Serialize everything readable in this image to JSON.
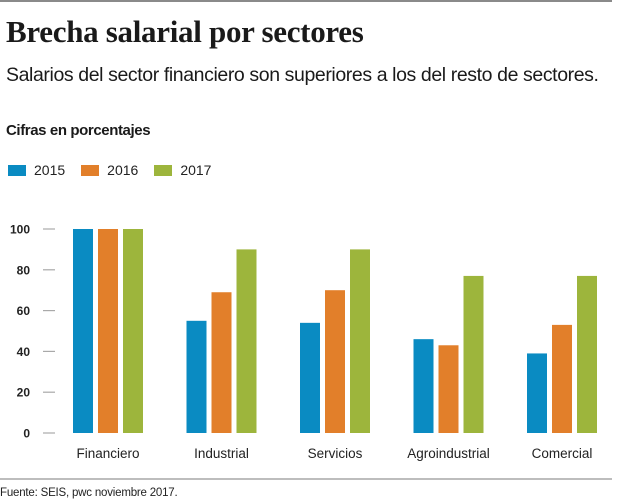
{
  "header": {
    "title": "Brecha salarial por sectores",
    "subtitle": "Salarios del sector financiero son superiores a los del resto de sectores.",
    "unit_label": "Cifras en porcentajes"
  },
  "footer": {
    "source": "Fuente: SEIS, pwc noviembre 2017."
  },
  "chart_data": {
    "type": "bar",
    "title": "Brecha salarial por sectores",
    "subtitle": "Salarios del sector financiero son superiores a los del resto de sectores.",
    "xlabel": "",
    "ylabel": "Cifras en porcentajes",
    "categories": [
      "Financiero",
      "Industrial",
      "Servicios",
      "Agroindustrial",
      "Comercial"
    ],
    "series": [
      {
        "name": "2015",
        "color": "#0a8bc2",
        "values": [
          100,
          55,
          54,
          46,
          39
        ]
      },
      {
        "name": "2016",
        "color": "#e27f2a",
        "values": [
          100,
          69,
          70,
          43,
          53
        ]
      },
      {
        "name": "2017",
        "color": "#9db53c",
        "values": [
          100,
          90,
          90,
          77,
          77
        ]
      }
    ],
    "ylim": [
      0,
      100
    ],
    "yticks": [
      0,
      20,
      40,
      60,
      80,
      100
    ],
    "ytick_labels": [
      "0",
      "20",
      "40",
      "60",
      "80",
      "100"
    ],
    "grid": false,
    "legend_position": "top-left"
  }
}
